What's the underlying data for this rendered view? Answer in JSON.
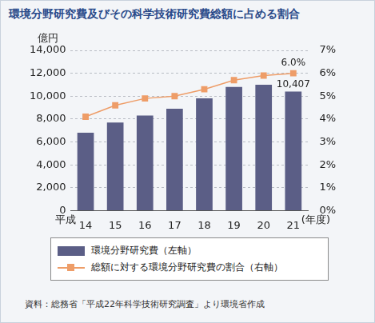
{
  "chart_data": {
    "type": "bar",
    "title": "環境分野研究費及びその科学技術研究費総額に占める割合",
    "ylabel": "億円",
    "xlabel_prefix": "平成",
    "xlabel_suffix": "(年度)",
    "categories": [
      "14",
      "15",
      "16",
      "17",
      "18",
      "19",
      "20",
      "21"
    ],
    "series": [
      {
        "name": "環境分野研究費（左軸）",
        "type": "bar",
        "color": "#5b5e86",
        "values": [
          6800,
          7700,
          8300,
          8900,
          9800,
          10800,
          11000,
          10407
        ],
        "value_labels": [
          null,
          null,
          null,
          null,
          null,
          null,
          null,
          "10,407"
        ]
      },
      {
        "name": "総額に対する環境分野研究費の割合（右軸）",
        "type": "line",
        "color": "#ee9d68",
        "marker": "square",
        "axis": "y2",
        "values": [
          4.1,
          4.6,
          4.9,
          5.0,
          5.3,
          5.7,
          5.9,
          6.0
        ],
        "value_labels": [
          null,
          null,
          null,
          null,
          null,
          null,
          null,
          "6.0%"
        ]
      }
    ],
    "ylim": [
      0,
      14000
    ],
    "yticks": [
      0,
      {
        "value": 2000,
        "label": "2,000"
      },
      {
        "value": 4000,
        "label": "4,000"
      },
      {
        "value": 6000,
        "label": "6,000"
      },
      {
        "value": 8000,
        "label": "8,000"
      },
      {
        "value": 10000,
        "label": "10,000"
      },
      {
        "value": 12000,
        "label": "12,000"
      },
      {
        "value": 14000,
        "label": "14,000"
      }
    ],
    "y2lim": [
      0,
      7
    ],
    "y2ticks": [
      {
        "value": 0,
        "label": "0%"
      },
      {
        "value": 1,
        "label": "1%"
      },
      {
        "value": 2,
        "label": "2%"
      },
      {
        "value": 3,
        "label": "3%"
      },
      {
        "value": 4,
        "label": "4%"
      },
      {
        "value": 5,
        "label": "5%"
      },
      {
        "value": 6,
        "label": "6%"
      },
      {
        "value": 7,
        "label": "7%"
      }
    ],
    "grid": true,
    "legend": "bottom",
    "source": "資料：総務省「平成22年科学技術研究調査」より環境省作成"
  }
}
